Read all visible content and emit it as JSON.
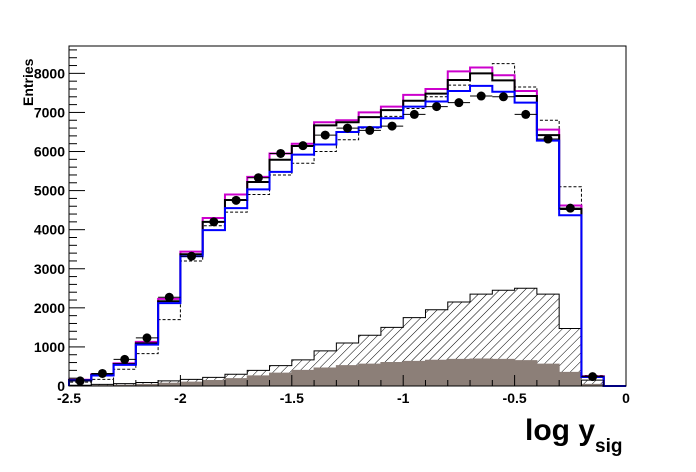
{
  "chart_data": {
    "type": "histogram",
    "xlabel": "log y",
    "xlabel_sub": "sig",
    "ylabel": "Entries",
    "xlim": [
      -2.5,
      0
    ],
    "ylim": [
      0,
      8700
    ],
    "x_ticks": [
      -2.5,
      -2,
      -1.5,
      -1,
      -0.5,
      0
    ],
    "x_tick_labels": [
      "-2.5",
      "-2",
      "-1.5",
      "-1",
      "-0.5",
      "0"
    ],
    "y_ticks": [
      0,
      1000,
      2000,
      3000,
      4000,
      5000,
      6000,
      7000,
      8000
    ],
    "y_tick_labels": [
      "0",
      "1000",
      "2000",
      "3000",
      "4000",
      "5000",
      "6000",
      "7000",
      "8000"
    ],
    "grid": false,
    "bin_edges": [
      -2.5,
      -2.4,
      -2.3,
      -2.2,
      -2.1,
      -2.0,
      -1.9,
      -1.8,
      -1.7,
      -1.6,
      -1.5,
      -1.4,
      -1.3,
      -1.2,
      -1.1,
      -1.0,
      -0.9,
      -0.8,
      -0.7,
      -0.6,
      -0.5,
      -0.4,
      -0.3,
      -0.2,
      -0.1,
      0.0
    ],
    "points": {
      "name": "",
      "x": [
        -2.45,
        -2.35,
        -2.25,
        -2.15,
        -2.05,
        -1.95,
        -1.85,
        -1.75,
        -1.65,
        -1.55,
        -1.45,
        -1.35,
        -1.25,
        -1.15,
        -1.05,
        -0.95,
        -0.85,
        -0.75,
        -0.65,
        -0.55,
        -0.45,
        -0.35,
        -0.25,
        -0.15,
        -0.05
      ],
      "y": [
        130,
        320,
        680,
        1230,
        2270,
        3320,
        4200,
        4750,
        5330,
        5950,
        6150,
        6420,
        6600,
        6540,
        6650,
        6950,
        7150,
        7250,
        7420,
        7400,
        6950,
        6320,
        4550,
        240,
        0
      ],
      "color": "#000000"
    },
    "series": [
      {
        "name": "",
        "style": "dashed",
        "color": "#000000",
        "values": [
          100,
          170,
          430,
          830,
          1700,
          3200,
          4100,
          4450,
          4900,
          5400,
          5700,
          6000,
          6300,
          6600,
          6900,
          7100,
          7400,
          7700,
          8000,
          8250,
          7650,
          6800,
          5100,
          270,
          0
        ]
      },
      {
        "name": "",
        "style": "solid",
        "color": "#cc00cc",
        "values": [
          160,
          300,
          580,
          1130,
          2230,
          3440,
          4300,
          4900,
          5350,
          5950,
          6200,
          6750,
          6800,
          7000,
          7150,
          7450,
          7600,
          8050,
          8150,
          7950,
          7550,
          6560,
          4620,
          250,
          0
        ]
      },
      {
        "name": "",
        "style": "solid",
        "color": "#000000",
        "values": [
          150,
          280,
          560,
          1090,
          2170,
          3370,
          4200,
          4760,
          5220,
          5790,
          6140,
          6670,
          6750,
          6880,
          7060,
          7300,
          7480,
          7830,
          8000,
          7820,
          7420,
          6420,
          4530,
          240,
          0
        ]
      },
      {
        "name": "",
        "style": "solid",
        "color": "#0000ff",
        "values": [
          140,
          270,
          540,
          1060,
          2120,
          3320,
          3990,
          4550,
          5030,
          5480,
          5920,
          6180,
          6500,
          6620,
          6850,
          7150,
          7280,
          7550,
          7680,
          7530,
          7250,
          6280,
          4370,
          230,
          0
        ]
      },
      {
        "name": "",
        "style": "hatched",
        "color": "#000000",
        "values": [
          20,
          40,
          60,
          90,
          130,
          170,
          220,
          300,
          400,
          520,
          670,
          900,
          1100,
          1300,
          1500,
          1750,
          1950,
          2150,
          2350,
          2450,
          2500,
          2350,
          1470,
          150,
          0
        ]
      },
      {
        "name": "",
        "style": "filled",
        "color": "#8c7f78",
        "values": [
          0,
          10,
          20,
          40,
          70,
          100,
          140,
          190,
          260,
          330,
          400,
          460,
          520,
          560,
          600,
          630,
          660,
          680,
          690,
          680,
          650,
          560,
          350,
          40,
          0
        ]
      }
    ]
  }
}
